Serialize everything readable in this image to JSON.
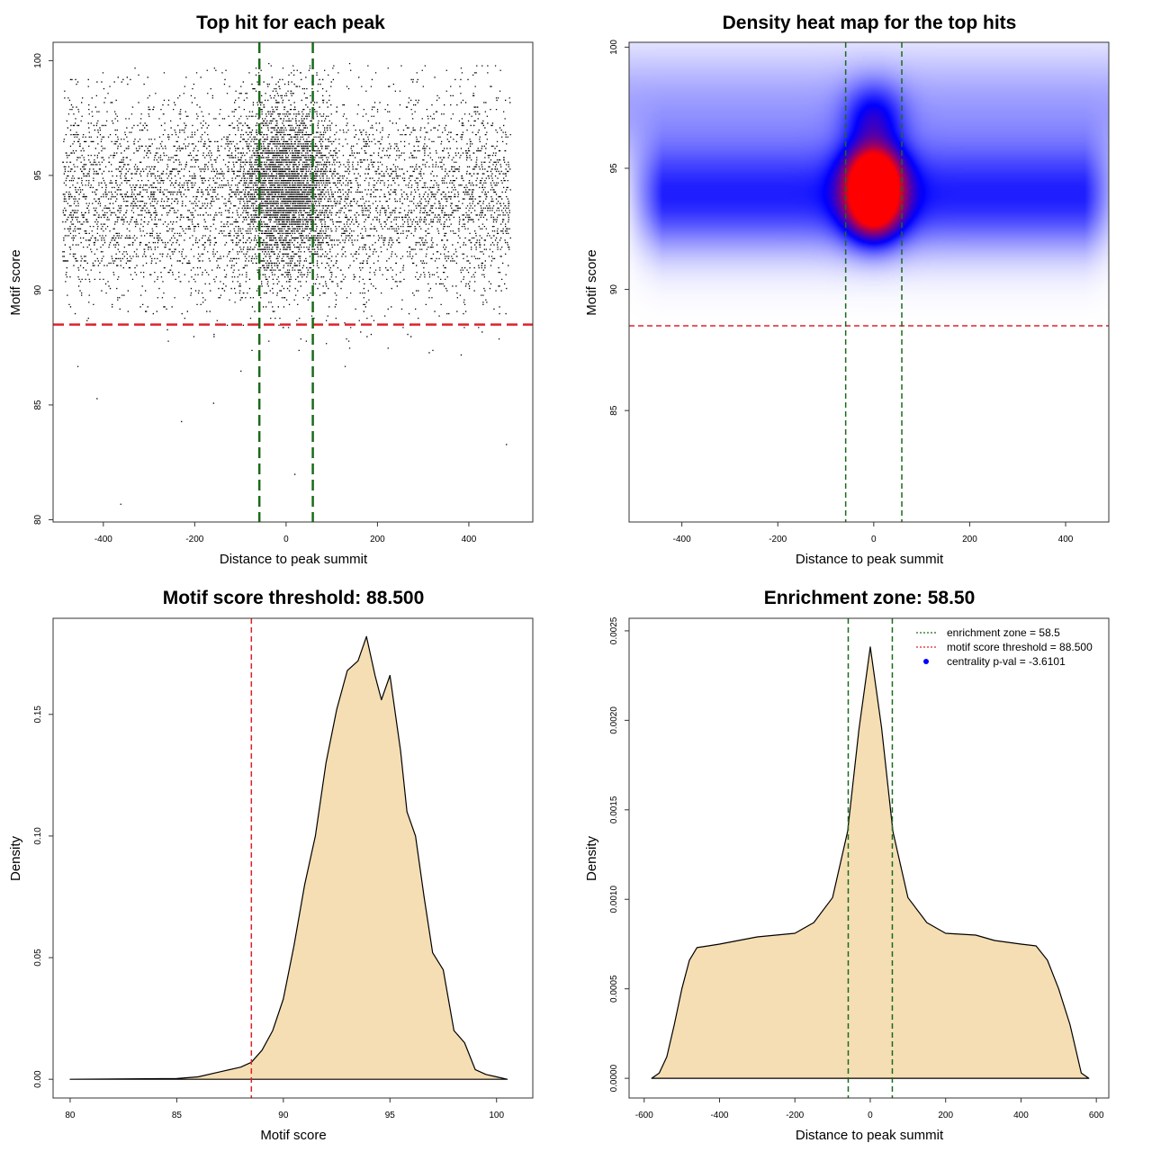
{
  "colors": {
    "threshold_line": "#e0202a",
    "zone_line": "#1a6b1a",
    "density_fill": "#f5deb3",
    "heat_low": "#ffffff",
    "heat_mid": "#0000ff",
    "heat_high": "#ff0000",
    "centrality_point": "#0000ff"
  },
  "chart_data": [
    {
      "type": "scatter",
      "title": "Top hit for each peak",
      "xlabel": "Distance to peak summit",
      "ylabel": "Motif score",
      "xlim": [
        -500,
        500
      ],
      "ylim": [
        80,
        100
      ],
      "xticks": [
        "-400",
        "-200",
        "0",
        "200",
        "400"
      ],
      "yticks": [
        "80",
        "85",
        "90",
        "95",
        "100"
      ],
      "hlines": [
        88.5
      ],
      "vlines": [
        -58.5,
        58.5
      ],
      "points_description_counts": "approx. 12000 points; x uniform -500..500 with concentration near 0; y mostly 89-99",
      "outliers": [
        [
          -363,
          80.7
        ],
        [
          481,
          83.3
        ],
        [
          -415,
          85.3
        ],
        [
          -160,
          85.1
        ],
        [
          -230,
          84.3
        ],
        [
          18,
          82.0
        ]
      ]
    },
    {
      "type": "heatmap",
      "title": "Density heat map for the top hits",
      "xlabel": "Distance to peak summit",
      "ylabel": "Motif score",
      "xlim": [
        -500,
        500
      ],
      "ylim": [
        80,
        100
      ],
      "xticks": [
        "-400",
        "-200",
        "0",
        "200",
        "400"
      ],
      "yticks": [
        "85",
        "90",
        "95",
        "100"
      ],
      "hlines": [
        88.5
      ],
      "vlines": [
        -58.5,
        58.5
      ],
      "hotspots": [
        [
          5,
          93.7
        ],
        [
          5,
          95.0
        ]
      ]
    },
    {
      "type": "area",
      "title": "Motif score threshold: 88.500",
      "xlabel": "Motif score",
      "ylabel": "Density",
      "xlim": [
        80,
        101
      ],
      "ylim": [
        0,
        0.18
      ],
      "xticks": [
        "80",
        "85",
        "90",
        "95",
        "100"
      ],
      "yticks": [
        "0.00",
        "0.05",
        "0.10",
        "0.15"
      ],
      "vlines": [
        88.5
      ],
      "x": [
        80,
        85,
        86,
        87,
        88,
        88.5,
        89,
        89.5,
        90,
        90.5,
        91,
        91.5,
        92,
        92.5,
        93,
        93.5,
        93.9,
        94.3,
        94.6,
        95,
        95.5,
        95.8,
        96.2,
        96.6,
        97.0,
        97.5,
        98,
        98.5,
        99,
        99.5,
        100,
        100.5
      ],
      "y": [
        0,
        0.0003,
        0.001,
        0.003,
        0.005,
        0.007,
        0.012,
        0.02,
        0.033,
        0.055,
        0.08,
        0.1,
        0.13,
        0.152,
        0.168,
        0.172,
        0.182,
        0.166,
        0.156,
        0.166,
        0.135,
        0.11,
        0.1,
        0.075,
        0.052,
        0.045,
        0.02,
        0.015,
        0.004,
        0.002,
        0.001,
        0
      ]
    },
    {
      "type": "area",
      "title": "Enrichment zone: 58.50",
      "xlabel": "Distance to peak summit",
      "ylabel": "Density",
      "xlim": [
        -600,
        620
      ],
      "ylim": [
        0,
        0.0025
      ],
      "xticks": [
        "-600",
        "-400",
        "-200",
        "0",
        "200",
        "400",
        "600"
      ],
      "yticks": [
        "0.0000",
        "0.0005",
        "0.0010",
        "0.0015",
        "0.0020",
        "0.0025"
      ],
      "vlines": [
        -58.5,
        58.5
      ],
      "x": [
        -580,
        -560,
        -540,
        -520,
        -500,
        -480,
        -460,
        -430,
        -400,
        -300,
        -200,
        -150,
        -100,
        -60,
        -30,
        0,
        30,
        60,
        100,
        150,
        200,
        280,
        330,
        400,
        440,
        470,
        500,
        530,
        560,
        580
      ],
      "y": [
        0,
        3e-05,
        0.00012,
        0.0003,
        0.0005,
        0.00066,
        0.00073,
        0.00074,
        0.00075,
        0.00079,
        0.00081,
        0.00087,
        0.00101,
        0.00138,
        0.00195,
        0.00241,
        0.00196,
        0.00138,
        0.00101,
        0.00087,
        0.00081,
        0.0008,
        0.00077,
        0.00075,
        0.00074,
        0.00066,
        0.0005,
        0.0003,
        3e-05,
        0
      ],
      "legend": [
        {
          "label": "enrichment zone = 58.5",
          "style": "dotted",
          "color": "#1a6b1a"
        },
        {
          "label": "motif score threshold = 88.500",
          "style": "dotted",
          "color": "#e0202a"
        },
        {
          "label": "centrality p-val = -3.6101",
          "style": "point",
          "color": "#0000ff"
        }
      ],
      "legend_position": "top-right"
    }
  ]
}
